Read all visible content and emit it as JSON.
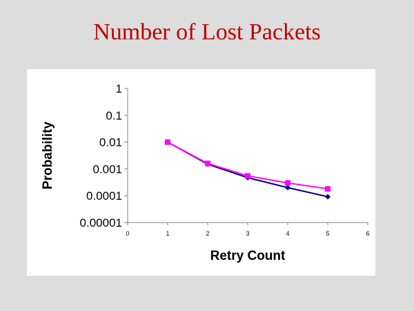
{
  "slide": {
    "title": "Number of Lost Packets"
  },
  "chart_data": {
    "type": "line",
    "title": "Number of Lost Packets",
    "xlabel": "Retry Count",
    "ylabel": "Probability",
    "y_scale": "log",
    "xlim": [
      0,
      6
    ],
    "ylim": [
      1e-05,
      1
    ],
    "x_ticks": [
      "0",
      "1",
      "2",
      "3",
      "4",
      "5",
      "6"
    ],
    "y_ticks": [
      "1",
      "0.1",
      "0.01",
      "0.001",
      "0.0001",
      "0.00001"
    ],
    "x_tick_values": [
      0,
      1,
      2,
      3,
      4,
      5,
      6
    ],
    "y_tick_values": [
      1,
      0.1,
      0.01,
      0.001,
      0.0001,
      1e-05
    ],
    "grid": false,
    "legend": "none",
    "series": [
      {
        "color": "#000080",
        "marker": "diamond",
        "x": [
          1,
          2,
          3,
          4,
          5
        ],
        "y": [
          0.01,
          0.0015,
          0.00047,
          0.0002,
          9.2e-05
        ]
      },
      {
        "color": "#ff00ff",
        "marker": "square",
        "x": [
          1,
          2,
          3,
          4,
          5
        ],
        "y": [
          0.01,
          0.0016,
          0.00055,
          0.0003,
          0.00018
        ]
      }
    ]
  }
}
